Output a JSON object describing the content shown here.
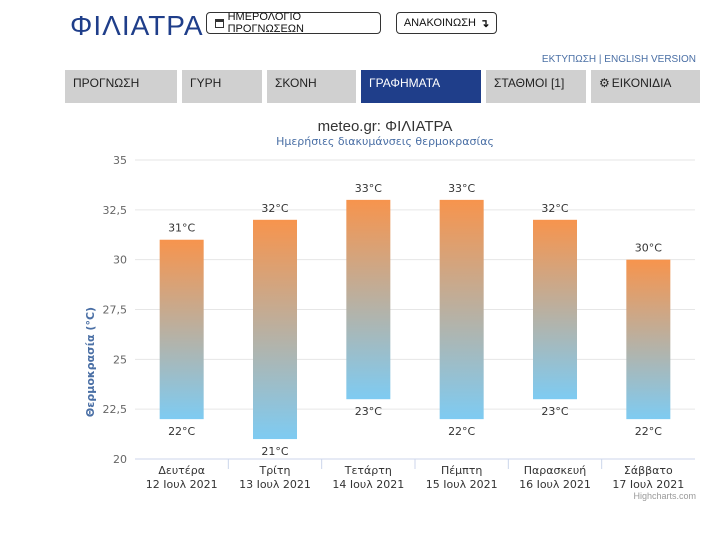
{
  "header": {
    "city": "ΦΙΛΙΑΤΡΑ",
    "forecast_calendar_label": "ΗΜΕΡΟΛΟΓΙΟ ΠΡΟΓΝΩΣΕΩΝ",
    "announcement_label": "ΑΝΑΚΟΙΝΩΣΗ",
    "print_link": "ΕΚΤΥΠΩΣΗ",
    "link_separator": "|",
    "english_link": "ENGLISH VERSION"
  },
  "tabs": [
    {
      "label": "ΠΡΟΓΝΩΣΗ"
    },
    {
      "label": "ΓΥΡΗ"
    },
    {
      "label": "ΣΚΟΝΗ"
    },
    {
      "label": "ΓΡΑΦΗΜΑΤΑ",
      "active": true
    },
    {
      "label": "ΣΤΑΘΜΟΙ [1]"
    },
    {
      "label": "ΕΙΚΟΝΙΔΙΑ",
      "icon": "gear-icon"
    }
  ],
  "chart_data": {
    "type": "bar",
    "title": "meteo.gr: ΦΙΛΙΑΤΡΑ",
    "subtitle": "Ημερήσιες διακυμάνσεις θερμοκρασίας",
    "ylabel": "Θερμοκρασία (°C)",
    "ylim": [
      20,
      35
    ],
    "yticks": [
      "20",
      "22,5",
      "25",
      "27,5",
      "30",
      "32,5",
      "35"
    ],
    "categories": [
      {
        "day": "Δευτέρα",
        "date": "12 Ιουλ 2021"
      },
      {
        "day": "Τρίτη",
        "date": "13 Ιουλ 2021"
      },
      {
        "day": "Τετάρτη",
        "date": "14 Ιουλ 2021"
      },
      {
        "day": "Πέμπτη",
        "date": "15 Ιουλ 2021"
      },
      {
        "day": "Παρασκευή",
        "date": "16 Ιουλ 2021"
      },
      {
        "day": "Σάββατο",
        "date": "17 Ιουλ 2021"
      }
    ],
    "high": [
      31,
      32,
      33,
      33,
      32,
      30
    ],
    "low": [
      22,
      21,
      23,
      22,
      23,
      22
    ],
    "unit": "°C",
    "colors": {
      "top": "#f7944d",
      "bottom": "#7ecbf2"
    },
    "grid": true,
    "credits": "Highcharts.com"
  }
}
